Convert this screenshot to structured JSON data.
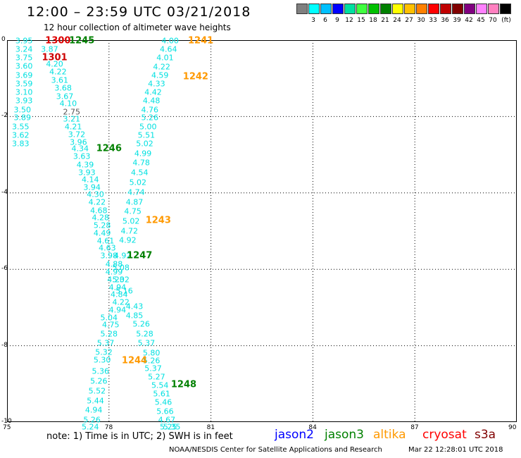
{
  "title": "12:00 – 23:59 UTC 03/21/2018",
  "subtitle": "12 hour collection of altimeter wave heights",
  "legend": {
    "unit": "(ft)",
    "colors": [
      "#808080",
      "#00ffff",
      "#00c0ff",
      "#0000ff",
      "#00e0a0",
      "#40ff40",
      "#00c000",
      "#008000",
      "#ffff00",
      "#ffc000",
      "#ff8000",
      "#ff0000",
      "#c00000",
      "#800000",
      "#800080",
      "#ff80ff",
      "#ff80c0",
      "#000000"
    ],
    "labels": [
      "3",
      "6",
      "9",
      "12",
      "15",
      "18",
      "21",
      "24",
      "27",
      "30",
      "33",
      "36",
      "39",
      "42",
      "45",
      "70"
    ]
  },
  "map": {
    "lon_min": 75,
    "lon_max": 90,
    "lat_top": 0,
    "lat_bottom": -10,
    "x_ticks": [
      "75",
      "78",
      "81",
      "84",
      "87",
      "90"
    ],
    "y_ticks": [
      "0",
      "-2",
      "-4",
      "-6",
      "-8",
      "-10"
    ],
    "grid": true
  },
  "swh_points": [
    {
      "t": "3.95",
      "lon": 75.5,
      "lat": 0.0
    },
    {
      "t": "3.24",
      "lon": 75.5,
      "lat": -0.22
    },
    {
      "t": "3.75",
      "lon": 75.5,
      "lat": -0.45
    },
    {
      "t": "3.60",
      "lon": 75.5,
      "lat": -0.67
    },
    {
      "t": "3.69",
      "lon": 75.5,
      "lat": -0.9
    },
    {
      "t": "3.59",
      "lon": 75.5,
      "lat": -1.12
    },
    {
      "t": "3.10",
      "lon": 75.5,
      "lat": -1.35
    },
    {
      "t": "3.93",
      "lon": 75.5,
      "lat": -1.57
    },
    {
      "t": "3.50",
      "lon": 75.45,
      "lat": -1.8
    },
    {
      "t": "3.89",
      "lon": 75.45,
      "lat": -2.02
    },
    {
      "t": "3.55",
      "lon": 75.4,
      "lat": -2.25
    },
    {
      "t": "3.62",
      "lon": 75.4,
      "lat": -2.47
    },
    {
      "t": "3.83",
      "lon": 75.4,
      "lat": -2.7
    },
    {
      "t": "3.87",
      "lon": 76.25,
      "lat": -0.22
    },
    {
      "t": "4.20",
      "lon": 76.4,
      "lat": -0.6
    },
    {
      "t": "4.22",
      "lon": 76.5,
      "lat": -0.82
    },
    {
      "t": "3.61",
      "lon": 76.55,
      "lat": -1.04
    },
    {
      "t": "3.68",
      "lon": 76.65,
      "lat": -1.24
    },
    {
      "t": "3.67",
      "lon": 76.7,
      "lat": -1.45
    },
    {
      "t": "4.10",
      "lon": 76.8,
      "lat": -1.65
    },
    {
      "t": "2.75",
      "lon": 76.9,
      "lat": -1.87,
      "gray": true
    },
    {
      "t": "3.21",
      "lon": 76.9,
      "lat": -2.05
    },
    {
      "t": "4.21",
      "lon": 76.95,
      "lat": -2.25
    },
    {
      "t": "3.72",
      "lon": 77.05,
      "lat": -2.45
    },
    {
      "t": "3.96",
      "lon": 77.1,
      "lat": -2.65
    },
    {
      "t": "4.34",
      "lon": 77.15,
      "lat": -2.83
    },
    {
      "t": "3.63",
      "lon": 77.2,
      "lat": -3.03
    },
    {
      "t": "4.39",
      "lon": 77.3,
      "lat": -3.24
    },
    {
      "t": "3.93",
      "lon": 77.35,
      "lat": -3.45
    },
    {
      "t": "4.14",
      "lon": 77.45,
      "lat": -3.64
    },
    {
      "t": "3.94",
      "lon": 77.5,
      "lat": -3.84
    },
    {
      "t": "4.30",
      "lon": 77.6,
      "lat": -4.03
    },
    {
      "t": "4.22",
      "lon": 77.65,
      "lat": -4.23
    },
    {
      "t": "4.68",
      "lon": 77.7,
      "lat": -4.44
    },
    {
      "t": "4.28",
      "lon": 77.75,
      "lat": -4.63
    },
    {
      "t": "5.28",
      "lon": 77.8,
      "lat": -4.83
    },
    {
      "t": "4.49",
      "lon": 77.8,
      "lat": -5.03
    },
    {
      "t": "4.61",
      "lon": 77.9,
      "lat": -5.24
    },
    {
      "t": "4.63",
      "lon": 77.95,
      "lat": -5.43
    },
    {
      "t": "3.98",
      "lon": 78.0,
      "lat": -5.62
    },
    {
      "t": "4.88",
      "lon": 78.15,
      "lat": -5.85
    },
    {
      "t": "4.99",
      "lon": 78.15,
      "lat": -6.05
    },
    {
      "t": "4.23",
      "lon": 78.2,
      "lat": -6.25
    },
    {
      "t": "4.94",
      "lon": 78.25,
      "lat": -6.45
    },
    {
      "t": "4.84",
      "lon": 78.3,
      "lat": -6.65
    },
    {
      "t": "4.22",
      "lon": 78.35,
      "lat": -6.85
    },
    {
      "t": "4.94",
      "lon": 78.25,
      "lat": -7.05
    },
    {
      "t": "5.04",
      "lon": 78.0,
      "lat": -7.25
    },
    {
      "t": "4.75",
      "lon": 78.05,
      "lat": -7.43
    },
    {
      "t": "5.28",
      "lon": 78.0,
      "lat": -7.68
    },
    {
      "t": "5.37",
      "lon": 77.9,
      "lat": -7.92
    },
    {
      "t": "5.32",
      "lon": 77.85,
      "lat": -8.15
    },
    {
      "t": "5.30",
      "lon": 77.8,
      "lat": -8.35
    },
    {
      "t": "5.36",
      "lon": 77.75,
      "lat": -8.65
    },
    {
      "t": "5.26",
      "lon": 77.7,
      "lat": -8.92
    },
    {
      "t": "5.52",
      "lon": 77.65,
      "lat": -9.17
    },
    {
      "t": "5.44",
      "lon": 77.6,
      "lat": -9.43
    },
    {
      "t": "4.94",
      "lon": 77.55,
      "lat": -9.67
    },
    {
      "t": "5.26",
      "lon": 77.5,
      "lat": -9.93
    },
    {
      "t": "5.24",
      "lon": 77.45,
      "lat": -10.2
    },
    {
      "t": "4.00",
      "lon": 79.8,
      "lat": 0.0
    },
    {
      "t": "4.64",
      "lon": 79.75,
      "lat": -0.22
    },
    {
      "t": "4.01",
      "lon": 79.65,
      "lat": -0.45
    },
    {
      "t": "4.22",
      "lon": 79.55,
      "lat": -0.68
    },
    {
      "t": "4.59",
      "lon": 79.5,
      "lat": -0.9
    },
    {
      "t": "4.33",
      "lon": 79.4,
      "lat": -1.12
    },
    {
      "t": "4.42",
      "lon": 79.3,
      "lat": -1.35
    },
    {
      "t": "4.48",
      "lon": 79.25,
      "lat": -1.57
    },
    {
      "t": "4.76",
      "lon": 79.2,
      "lat": -1.8
    },
    {
      "t": "5.26",
      "lon": 79.2,
      "lat": -2.02
    },
    {
      "t": "5.00",
      "lon": 79.15,
      "lat": -2.25
    },
    {
      "t": "5.51",
      "lon": 79.1,
      "lat": -2.47
    },
    {
      "t": "5.02",
      "lon": 79.05,
      "lat": -2.7
    },
    {
      "t": "4.99",
      "lon": 79.0,
      "lat": -2.95
    },
    {
      "t": "4.78",
      "lon": 78.95,
      "lat": -3.2
    },
    {
      "t": "4.54",
      "lon": 78.9,
      "lat": -3.45
    },
    {
      "t": "5.02",
      "lon": 78.85,
      "lat": -3.7
    },
    {
      "t": "4.74",
      "lon": 78.8,
      "lat": -3.97
    },
    {
      "t": "4.87",
      "lon": 78.75,
      "lat": -4.22
    },
    {
      "t": "4.75",
      "lon": 78.7,
      "lat": -4.47
    },
    {
      "t": "5.02",
      "lon": 78.65,
      "lat": -4.73
    },
    {
      "t": "4.72",
      "lon": 78.6,
      "lat": -4.98
    },
    {
      "t": "4.92",
      "lon": 78.55,
      "lat": -5.23
    },
    {
      "t": "4.92",
      "lon": 78.4,
      "lat": -5.62
    },
    {
      "t": "5.08",
      "lon": 78.35,
      "lat": -5.95
    },
    {
      "t": "5.02",
      "lon": 78.35,
      "lat": -6.25
    },
    {
      "t": "5.16",
      "lon": 78.45,
      "lat": -6.55
    },
    {
      "t": "4.43",
      "lon": 78.75,
      "lat": -6.95
    },
    {
      "t": "4.85",
      "lon": 78.75,
      "lat": -7.2
    },
    {
      "t": "5.26",
      "lon": 78.95,
      "lat": -7.42
    },
    {
      "t": "5.28",
      "lon": 79.05,
      "lat": -7.67
    },
    {
      "t": "5.37",
      "lon": 79.1,
      "lat": -7.92
    },
    {
      "t": "5.80",
      "lon": 79.25,
      "lat": -8.18
    },
    {
      "t": "5.26",
      "lon": 79.25,
      "lat": -8.38
    },
    {
      "t": "5.37",
      "lon": 79.3,
      "lat": -8.58
    },
    {
      "t": "5.27",
      "lon": 79.4,
      "lat": -8.8
    },
    {
      "t": "5.54",
      "lon": 79.5,
      "lat": -9.02
    },
    {
      "t": "5.61",
      "lon": 79.55,
      "lat": -9.24
    },
    {
      "t": "5.46",
      "lon": 79.6,
      "lat": -9.47
    },
    {
      "t": "5.66",
      "lon": 79.65,
      "lat": -9.7
    },
    {
      "t": "4.67",
      "lon": 79.7,
      "lat": -9.93
    },
    {
      "t": "5.25",
      "lon": 79.75,
      "lat": -10.15
    },
    {
      "t": "5.35",
      "lon": 79.85,
      "lat": -10.37
    }
  ],
  "pass_labels": [
    {
      "t": "1300",
      "lon": 76.5,
      "lat": 0.0,
      "color": "#dd0000"
    },
    {
      "t": "1245",
      "lon": 77.2,
      "lat": 0.0,
      "color": "#008000"
    },
    {
      "t": "1301",
      "lon": 76.4,
      "lat": -0.45,
      "color": "#cc0000"
    },
    {
      "t": "1241",
      "lon": 80.7,
      "lat": 0.0,
      "color": "#ff9900"
    },
    {
      "t": "1242",
      "lon": 80.55,
      "lat": -0.95,
      "color": "#ff9900"
    },
    {
      "t": "1246",
      "lon": 78.0,
      "lat": -2.83,
      "color": "#008000"
    },
    {
      "t": "1243",
      "lon": 79.45,
      "lat": -4.7,
      "color": "#ff9900"
    },
    {
      "t": "1247",
      "lon": 78.9,
      "lat": -5.62,
      "color": "#008000"
    },
    {
      "t": "1244",
      "lon": 78.75,
      "lat": -8.38,
      "color": "#ff9900"
    },
    {
      "t": "1248",
      "lon": 80.2,
      "lat": -9.0,
      "color": "#008000"
    }
  ],
  "note": "note: 1) Time is in UTC; 2) SWH is in feet",
  "satellites": [
    {
      "name": "jason2",
      "color": "#0000ff",
      "left": 390
    },
    {
      "name": "jason3",
      "color": "#008000",
      "left": 461
    },
    {
      "name": "altika",
      "color": "#ff9900",
      "left": 530
    },
    {
      "name": "cryosat",
      "color": "#ff0000",
      "left": 600
    },
    {
      "name": "s3a",
      "color": "#800000",
      "left": 674
    }
  ],
  "credit": "NOAA/NESDIS Center for Satellite Applications and Research",
  "stamp": "Mar 22 12:28:01 UTC 2018"
}
